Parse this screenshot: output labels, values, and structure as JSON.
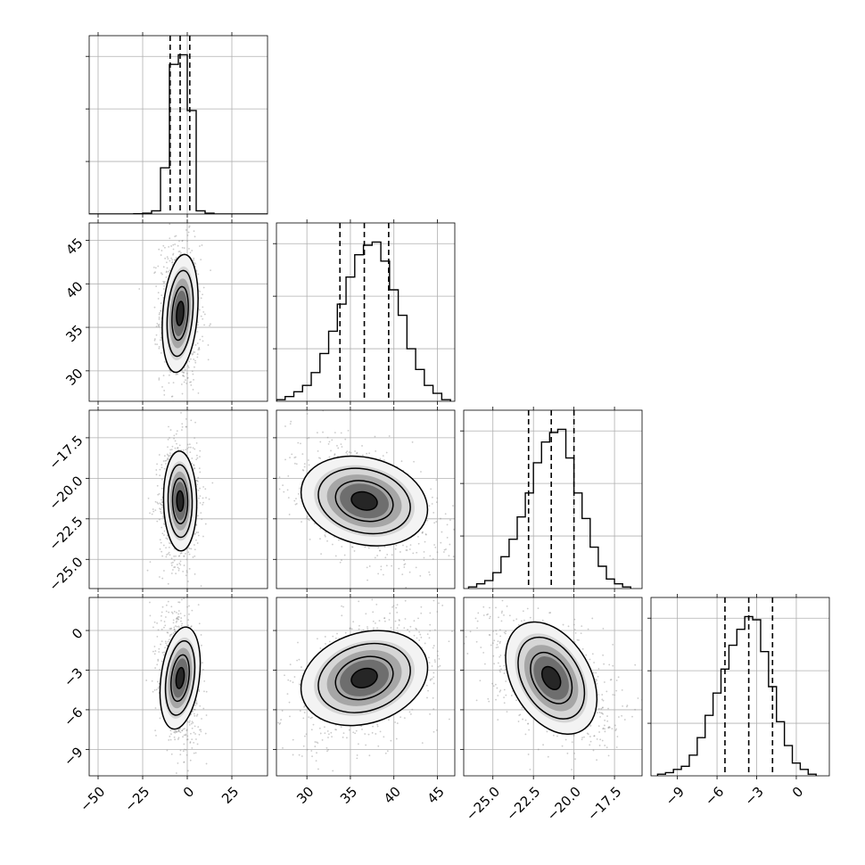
{
  "chart_data": {
    "type": "corner",
    "grid": true,
    "parameters": [
      {
        "index": 0,
        "range": [
          -55,
          45
        ],
        "ticks": [
          -50,
          -25,
          0,
          25
        ],
        "tick_labels": [
          "−50",
          "−25",
          "0",
          "25"
        ],
        "quantiles": [
          -9.6,
          -4.0,
          1.4
        ]
      },
      {
        "index": 1,
        "range": [
          26.5,
          47
        ],
        "ticks": [
          30,
          35,
          40,
          45
        ],
        "tick_labels": [
          "30",
          "35",
          "40",
          "45"
        ],
        "quantiles": [
          33.8,
          36.6,
          39.4
        ]
      },
      {
        "index": 2,
        "range": [
          -26.8,
          -15.8
        ],
        "ticks": [
          -25.0,
          -22.5,
          -20.0,
          -17.5
        ],
        "tick_labels": [
          "−25.0",
          "−22.5",
          "−20.0",
          "−17.5"
        ],
        "quantiles": [
          -22.8,
          -21.4,
          -20.0
        ]
      },
      {
        "index": 3,
        "range": [
          -11,
          2.5
        ],
        "ticks": [
          -9,
          -6,
          -3,
          0
        ],
        "tick_labels": [
          "−9",
          "−6",
          "−3",
          "0"
        ],
        "quantiles": [
          -5.4,
          -3.6,
          -1.8
        ]
      }
    ],
    "histograms": [
      {
        "param": 0,
        "bins": [
          -55,
          -50,
          -45,
          -40,
          -35,
          -30,
          -25,
          -20,
          -15,
          -10,
          -5,
          0,
          5,
          10,
          15,
          20,
          25,
          30,
          35,
          40,
          45
        ],
        "counts": [
          0,
          0,
          0,
          0,
          0,
          0.002,
          0.005,
          0.02,
          0.29,
          0.94,
          1.0,
          0.65,
          0.02,
          0.005,
          0,
          0,
          0,
          0,
          0,
          0
        ]
      },
      {
        "param": 1,
        "bins": [
          26.5,
          27.5,
          28.5,
          29.5,
          30.5,
          31.5,
          32.5,
          33.5,
          34.5,
          35.5,
          36.5,
          37.5,
          38.5,
          39.5,
          40.5,
          41.5,
          42.5,
          43.5,
          44.5,
          45.5,
          46.5
        ],
        "counts": [
          0.01,
          0.03,
          0.06,
          0.1,
          0.18,
          0.3,
          0.44,
          0.61,
          0.78,
          0.92,
          0.98,
          1.0,
          0.88,
          0.7,
          0.54,
          0.33,
          0.2,
          0.1,
          0.05,
          0.01
        ]
      },
      {
        "param": 2,
        "bins": [
          -26.5,
          -26.0,
          -25.5,
          -25.0,
          -24.5,
          -24.0,
          -23.5,
          -23.0,
          -22.5,
          -22.0,
          -21.5,
          -21.0,
          -20.5,
          -20.0,
          -19.5,
          -19.0,
          -18.5,
          -18.0,
          -17.5,
          -17.0,
          -16.5
        ],
        "counts": [
          0.01,
          0.03,
          0.05,
          0.1,
          0.2,
          0.31,
          0.45,
          0.6,
          0.79,
          0.92,
          0.98,
          1.0,
          0.82,
          0.6,
          0.44,
          0.26,
          0.14,
          0.06,
          0.03,
          0.01
        ]
      },
      {
        "param": 3,
        "bins": [
          -10.5,
          -9.9,
          -9.3,
          -8.7,
          -8.1,
          -7.5,
          -6.9,
          -6.3,
          -5.7,
          -5.1,
          -4.5,
          -3.9,
          -3.3,
          -2.7,
          -2.1,
          -1.5,
          -0.9,
          -0.3,
          0.3,
          0.9,
          1.5
        ],
        "counts": [
          0.01,
          0.02,
          0.04,
          0.06,
          0.13,
          0.24,
          0.38,
          0.52,
          0.67,
          0.82,
          0.92,
          1.0,
          0.98,
          0.78,
          0.56,
          0.34,
          0.19,
          0.08,
          0.04,
          0.01
        ]
      }
    ],
    "pairs": [
      {
        "x_param": 0,
        "y_param": 1,
        "mean": [
          -4,
          36.6
        ],
        "sigma": [
          4.2,
          3.1
        ],
        "rho": -0.05
      },
      {
        "x_param": 0,
        "y_param": 2,
        "mean": [
          -4,
          -21.4
        ],
        "sigma": [
          4.2,
          1.4
        ],
        "rho": 0.05
      },
      {
        "x_param": 1,
        "y_param": 2,
        "mean": [
          36.6,
          -21.4
        ],
        "sigma": [
          3.1,
          1.4
        ],
        "rho": -0.48
      },
      {
        "x_param": 0,
        "y_param": 3,
        "mean": [
          -4,
          -3.6
        ],
        "sigma": [
          4.2,
          1.8
        ],
        "rho": -0.25
      },
      {
        "x_param": 1,
        "y_param": 3,
        "mean": [
          36.6,
          -3.6
        ],
        "sigma": [
          3.1,
          1.8
        ],
        "rho": 0.42
      },
      {
        "x_param": 2,
        "y_param": 3,
        "mean": [
          -21.4,
          -3.6
        ],
        "sigma": [
          1.4,
          1.8
        ],
        "rho": -0.45
      }
    ]
  }
}
